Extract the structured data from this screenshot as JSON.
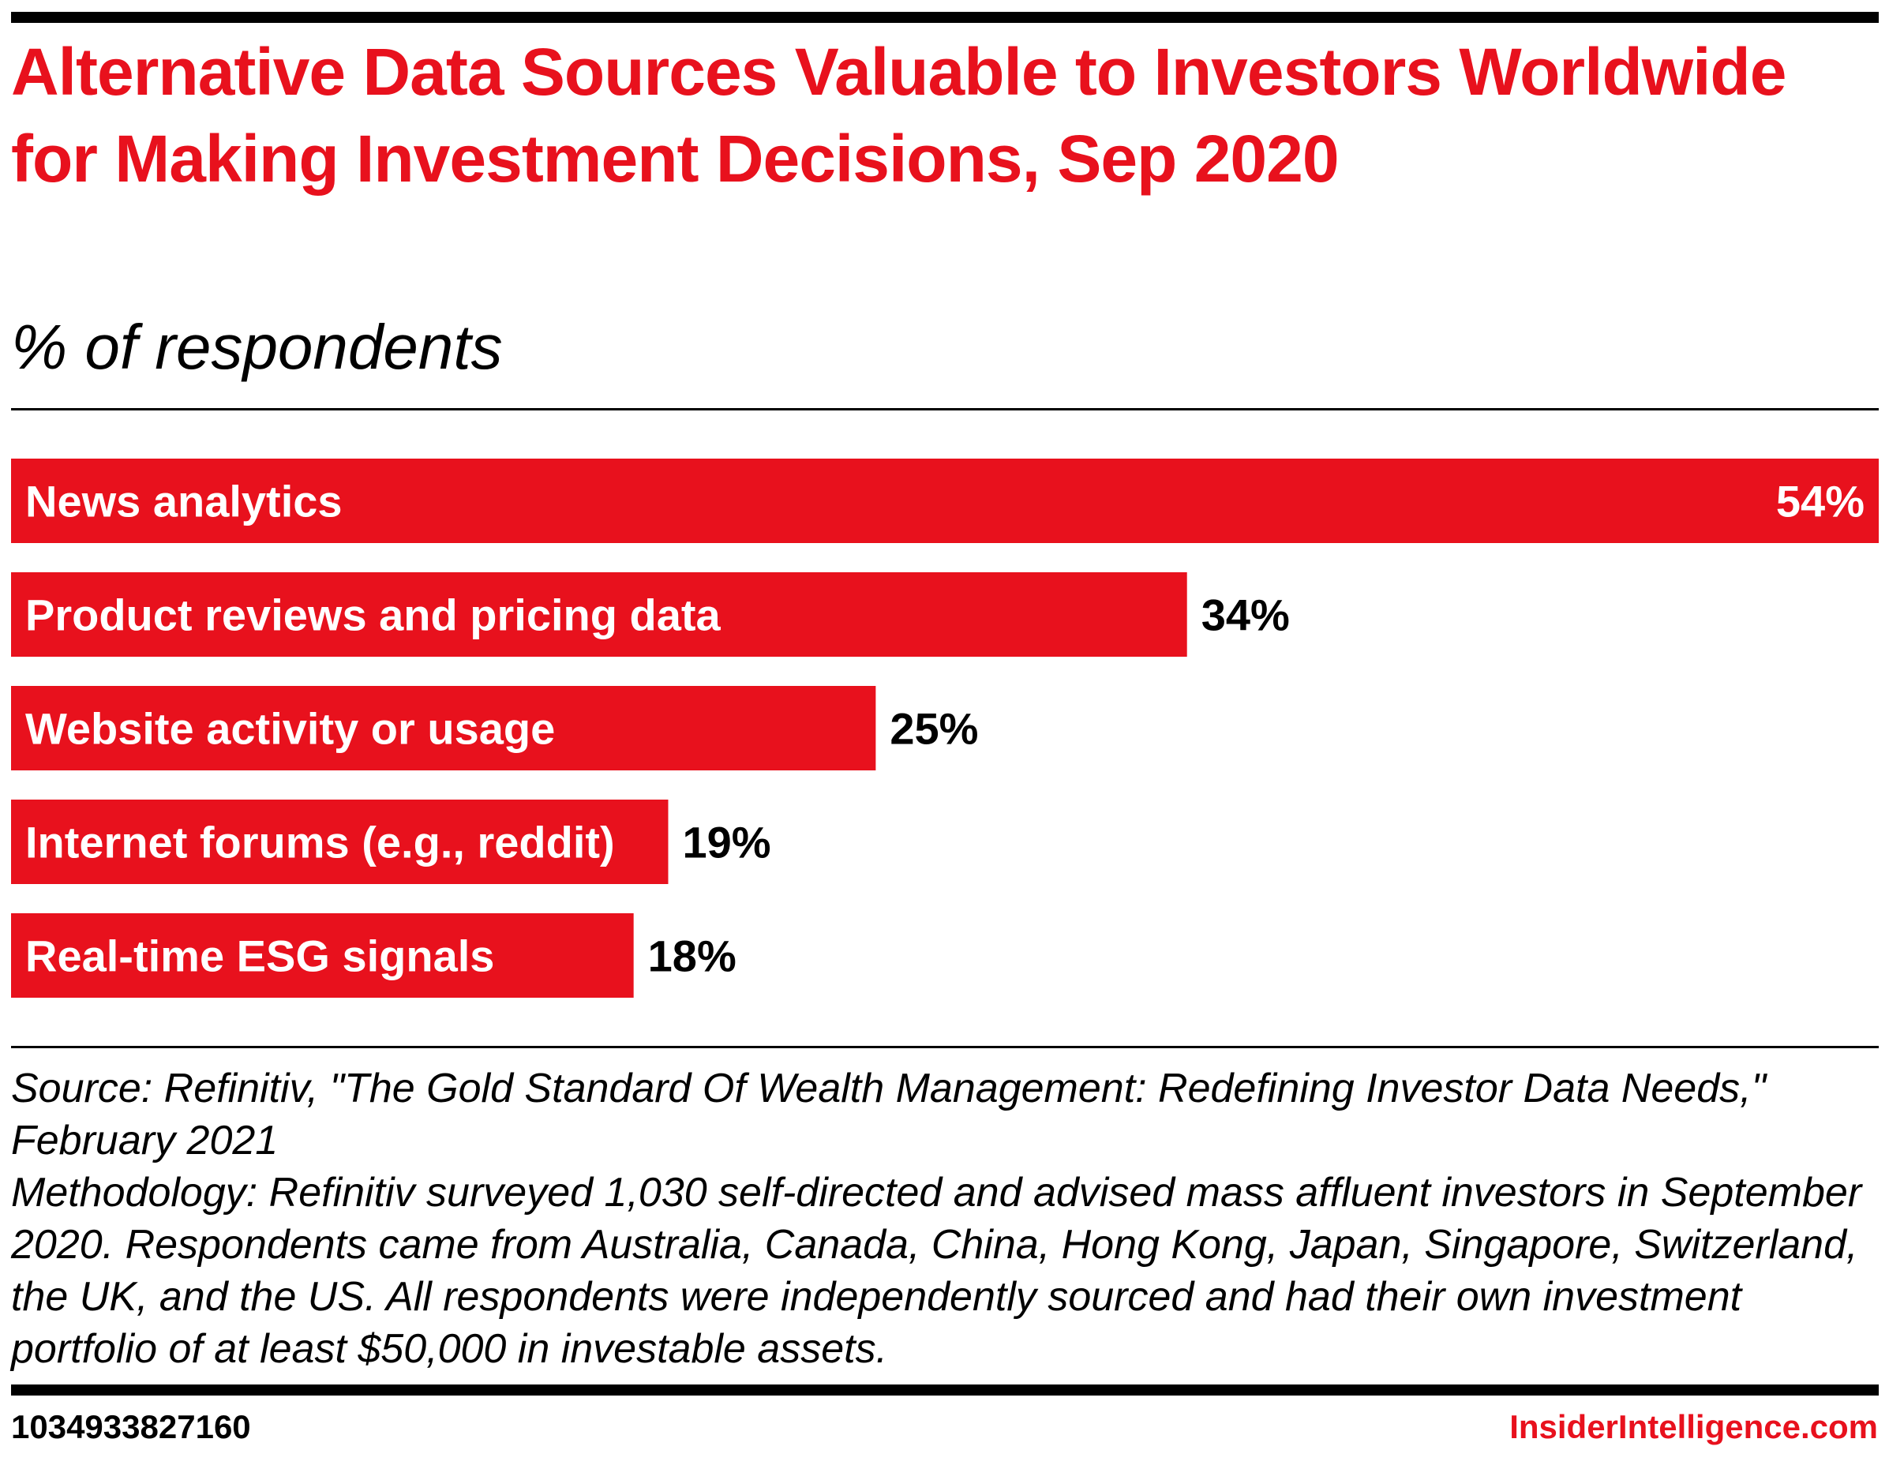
{
  "header": {
    "title": "Alternative Data Sources Valuable to Investors Worldwide for Making Investment Decisions, Sep 2020",
    "subtitle": "% of respondents"
  },
  "chart_data": {
    "type": "bar",
    "orientation": "horizontal",
    "categories": [
      "News analytics",
      "Product reviews and pricing data",
      "Website activity or usage",
      "Internet forums (e.g., reddit)",
      "Real-time ESG signals"
    ],
    "values": [
      54,
      34,
      25,
      19,
      18
    ],
    "value_labels": [
      "54%",
      "34%",
      "25%",
      "19%",
      "18%"
    ],
    "xlim": [
      0,
      54
    ],
    "grid": false,
    "bar_color": "#e8111d"
  },
  "footer": {
    "source": "Source: Refinitiv, \"The Gold Standard Of Wealth Management: Redefining Investor Data Needs,\" February 2021",
    "methodology": "Methodology: Refinitiv surveyed 1,030 self-directed and advised mass affluent investors in September 2020. Respondents came from Australia, Canada, China, Hong Kong, Japan, Singapore, Switzerland, the UK, and the US. All respondents were independently sourced and had their own investment portfolio of at least $50,000 in investable assets.",
    "chart_id": "1034933827160",
    "brand": "InsiderIntelligence.com"
  }
}
